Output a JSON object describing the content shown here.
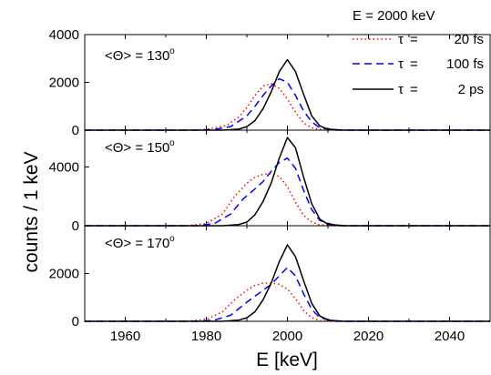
{
  "chart_data": {
    "type": "line",
    "header": "E = 2000 keV",
    "xlabel": "E [keV]",
    "ylabel": "counts / 1 keV",
    "xlim": [
      1950,
      2050
    ],
    "x_ticks": [
      "1960",
      "1980",
      "2000",
      "2020",
      "2040"
    ],
    "legend": [
      {
        "symbol": "τ",
        "eq": "=",
        "value": "20 fs"
      },
      {
        "symbol": "τ",
        "eq": "=",
        "value": "100 fs"
      },
      {
        "symbol": "τ",
        "eq": "=",
        "value": "2 ps"
      }
    ],
    "series_styles": [
      {
        "color": "#ff0000",
        "dash": "1.5,3"
      },
      {
        "color": "#0000ff",
        "dash": "8,5"
      },
      {
        "color": "#000000",
        "dash": ""
      }
    ],
    "panels": [
      {
        "label": "<Θ> = 130",
        "sup": "o",
        "ylim": [
          0,
          4000
        ],
        "y_ticks": [
          "0",
          "2000",
          "4000"
        ],
        "series": [
          {
            "x": [
              1975,
              1980,
              1985,
              1988,
              1990,
              1992,
              1994,
              1996,
              1998,
              2000,
              2002,
              2004,
              2006,
              2008,
              2012,
              2020
            ],
            "y": [
              0,
              30,
              200,
              550,
              950,
              1450,
              1850,
              1950,
              1750,
              1300,
              750,
              300,
              100,
              30,
              0,
              0
            ]
          },
          {
            "x": [
              1978,
              1982,
              1986,
              1990,
              1992,
              1994,
              1996,
              1998,
              2000,
              2002,
              2004,
              2006,
              2008,
              2012,
              2020
            ],
            "y": [
              0,
              30,
              150,
              600,
              1000,
              1450,
              1850,
              2150,
              2000,
              1450,
              800,
              350,
              100,
              0,
              0
            ]
          },
          {
            "x": [
              1984,
              1988,
              1990,
              1992,
              1994,
              1996,
              1998,
              2000,
              2002,
              2004,
              2006,
              2008,
              2010,
              2014
            ],
            "y": [
              0,
              40,
              150,
              400,
              900,
              1600,
              2450,
              2950,
              2450,
              1500,
              600,
              180,
              40,
              0
            ]
          }
        ]
      },
      {
        "label": "<Θ> = 150",
        "sup": "o",
        "ylim": [
          0,
          6500
        ],
        "y_ticks": [
          "0",
          "4000"
        ],
        "series": [
          {
            "x": [
              1975,
              1980,
              1984,
              1987,
              1990,
              1992,
              1994,
              1996,
              1998,
              2000,
              2002,
              2004,
              2006,
              2008,
              2012,
              2020
            ],
            "y": [
              0,
              150,
              800,
              2000,
              2900,
              3300,
              3500,
              3550,
              3350,
              2650,
              1600,
              700,
              250,
              60,
              0,
              0
            ]
          },
          {
            "x": [
              1978,
              1982,
              1986,
              1989,
              1992,
              1994,
              1996,
              1998,
              2000,
              2002,
              2004,
              2006,
              2008,
              2012,
              2020
            ],
            "y": [
              0,
              150,
              800,
              1800,
              2500,
              3000,
              3700,
              4300,
              4600,
              3900,
              2400,
              1100,
              350,
              0,
              0
            ]
          },
          {
            "x": [
              1984,
              1988,
              1990,
              1992,
              1994,
              1996,
              1998,
              2000,
              2002,
              2004,
              2006,
              2008,
              2010,
              2014
            ],
            "y": [
              0,
              80,
              250,
              750,
              1650,
              2900,
              4600,
              6000,
              5300,
              3300,
              1500,
              450,
              100,
              0
            ]
          }
        ]
      },
      {
        "label": "<Θ> = 170",
        "sup": "o",
        "ylim": [
          0,
          4000
        ],
        "y_ticks": [
          "0",
          "2000"
        ],
        "series": [
          {
            "x": [
              1975,
              1980,
              1984,
              1987,
              1990,
              1992,
              1994,
              1996,
              1998,
              2000,
              2002,
              2004,
              2006,
              2008,
              2012,
              2020
            ],
            "y": [
              0,
              80,
              400,
              900,
              1300,
              1500,
              1600,
              1600,
              1550,
              1350,
              950,
              450,
              150,
              30,
              0,
              0
            ]
          },
          {
            "x": [
              1978,
              1982,
              1986,
              1990,
              1992,
              1994,
              1996,
              1998,
              2000,
              2002,
              2004,
              2006,
              2008,
              2012,
              2020
            ],
            "y": [
              0,
              50,
              250,
              800,
              1050,
              1300,
              1550,
              1900,
              2250,
              1900,
              1150,
              500,
              150,
              0,
              0
            ]
          },
          {
            "x": [
              1984,
              1988,
              1990,
              1992,
              1994,
              1996,
              1998,
              2000,
              2002,
              2004,
              2006,
              2008,
              2010,
              2014
            ],
            "y": [
              0,
              50,
              150,
              400,
              900,
              1600,
              2500,
              3200,
              2700,
              1700,
              750,
              220,
              50,
              0
            ]
          }
        ]
      }
    ]
  }
}
